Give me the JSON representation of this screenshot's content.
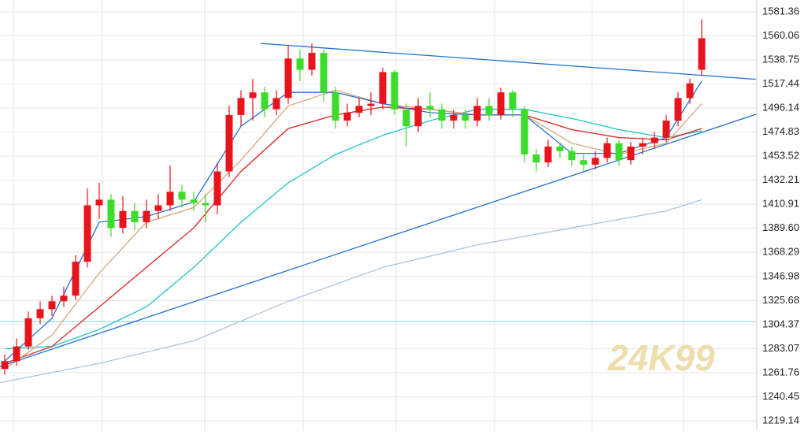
{
  "chart_data": {
    "type": "candlestick",
    "up_color": "#e8141c",
    "down_color": "#3ddc2a",
    "open": [
      1265,
      1272,
      1285,
      1310,
      1318,
      1325,
      1330,
      1360,
      1410,
      1415,
      1390,
      1405,
      1395,
      1405,
      1410,
      1422,
      1415,
      1412,
      1410,
      1440,
      1490,
      1505,
      1510,
      1495,
      1505,
      1540,
      1530,
      1545,
      1510,
      1485,
      1492,
      1498,
      1500,
      1528,
      1495,
      1480,
      1498,
      1495,
      1485,
      1490,
      1485,
      1498,
      1490,
      1510,
      1495,
      1455,
      1448,
      1462,
      1458,
      1450,
      1446,
      1452,
      1465,
      1450,
      1462,
      1465,
      1470,
      1485,
      1505,
      1530
    ],
    "high": [
      1278,
      1292,
      1316,
      1325,
      1330,
      1338,
      1366,
      1425,
      1430,
      1420,
      1418,
      1412,
      1415,
      1420,
      1445,
      1428,
      1422,
      1420,
      1448,
      1498,
      1512,
      1522,
      1515,
      1512,
      1552,
      1548,
      1553,
      1548,
      1515,
      1500,
      1505,
      1510,
      1532,
      1530,
      1500,
      1505,
      1510,
      1500,
      1495,
      1495,
      1505,
      1505,
      1514,
      1512,
      1498,
      1460,
      1468,
      1466,
      1462,
      1455,
      1458,
      1470,
      1468,
      1466,
      1470,
      1475,
      1490,
      1510,
      1522,
      1575
    ],
    "low": [
      1260,
      1268,
      1282,
      1305,
      1312,
      1320,
      1326,
      1355,
      1398,
      1382,
      1385,
      1388,
      1390,
      1398,
      1405,
      1408,
      1405,
      1395,
      1402,
      1435,
      1480,
      1485,
      1488,
      1490,
      1500,
      1520,
      1525,
      1502,
      1478,
      1480,
      1488,
      1490,
      1495,
      1490,
      1462,
      1475,
      1488,
      1478,
      1478,
      1478,
      1480,
      1485,
      1486,
      1488,
      1448,
      1440,
      1444,
      1452,
      1445,
      1440,
      1442,
      1448,
      1445,
      1446,
      1455,
      1460,
      1466,
      1480,
      1500,
      1525
    ],
    "close": [
      1272,
      1285,
      1310,
      1318,
      1325,
      1330,
      1360,
      1410,
      1415,
      1390,
      1405,
      1395,
      1405,
      1410,
      1422,
      1415,
      1412,
      1410,
      1440,
      1490,
      1505,
      1510,
      1495,
      1505,
      1540,
      1530,
      1545,
      1510,
      1485,
      1492,
      1498,
      1500,
      1528,
      1495,
      1480,
      1498,
      1495,
      1485,
      1490,
      1485,
      1498,
      1490,
      1510,
      1495,
      1455,
      1448,
      1462,
      1458,
      1450,
      1446,
      1452,
      1465,
      1450,
      1462,
      1465,
      1470,
      1485,
      1505,
      1518,
      1558
    ],
    "lines": [
      {
        "color": "#a9c4e0",
        "x": [
          -0.4,
          8,
          16,
          24,
          32,
          40,
          48,
          56,
          59
        ],
        "values": [
          1253,
          1270,
          1290,
          1325,
          1355,
          1375,
          1390,
          1405,
          1415
        ]
      },
      {
        "color": "#22c4c8",
        "x": [
          0,
          4,
          8,
          12,
          16,
          20,
          24,
          28,
          32,
          36,
          40,
          44,
          48,
          52,
          56,
          59
        ],
        "values": [
          1283,
          1285,
          1300,
          1320,
          1355,
          1395,
          1430,
          1455,
          1472,
          1485,
          1495,
          1495,
          1487,
          1477,
          1470,
          1476
        ]
      },
      {
        "color": "#dd2020",
        "x": [
          0,
          4,
          8,
          12,
          16,
          20,
          24,
          28,
          32,
          36,
          40,
          44,
          48,
          52,
          56,
          59
        ],
        "values": [
          1270,
          1285,
          1320,
          1355,
          1390,
          1440,
          1478,
          1490,
          1497,
          1495,
          1490,
          1490,
          1477,
          1470,
          1468,
          1478
        ]
      },
      {
        "color": "#d9a77a",
        "x": [
          0,
          4,
          8,
          12,
          16,
          20,
          24,
          28,
          32,
          36,
          40,
          44,
          48,
          52,
          56,
          59
        ],
        "values": [
          1265,
          1295,
          1350,
          1395,
          1408,
          1450,
          1498,
          1512,
          1500,
          1495,
          1490,
          1490,
          1465,
          1455,
          1465,
          1500
        ]
      },
      {
        "color": "#2a6fd6",
        "x": [
          0,
          4,
          8,
          12,
          16,
          20,
          24,
          28,
          32,
          36,
          40,
          44,
          48,
          52,
          56,
          59
        ],
        "values": [
          1272,
          1310,
          1395,
          1400,
          1413,
          1480,
          1510,
          1510,
          1500,
          1492,
          1490,
          1490,
          1456,
          1456,
          1470,
          1520
        ]
      },
      {
        "color": "#1f6fd0",
        "x": [
          21.67,
          63.6
        ],
        "values": [
          1553.4,
          1521.6
        ]
      },
      {
        "color": "#1f6fd0",
        "x": [
          -0.4,
          63.6
        ],
        "values": [
          1267.3,
          1490.6
        ]
      }
    ],
    "hline": 1307.1,
    "hline_color": "#7fd3d6",
    "xlim": [
      -0.4,
      63.6
    ],
    "ylim": [
      1210.07,
      1591.83
    ],
    "yticks": [
      1581.36,
      1560.06,
      1538.75,
      1517.44,
      1496.14,
      1474.83,
      1453.52,
      1432.21,
      1410.91,
      {
        "value": 1389.6,
        "label": "1389.60"
      },
      1368.29,
      1346.98,
      1325.68,
      1304.37,
      1283.07,
      1261.76,
      1240.45,
      1219.14
    ],
    "grid": true,
    "watermark": "24K99"
  }
}
